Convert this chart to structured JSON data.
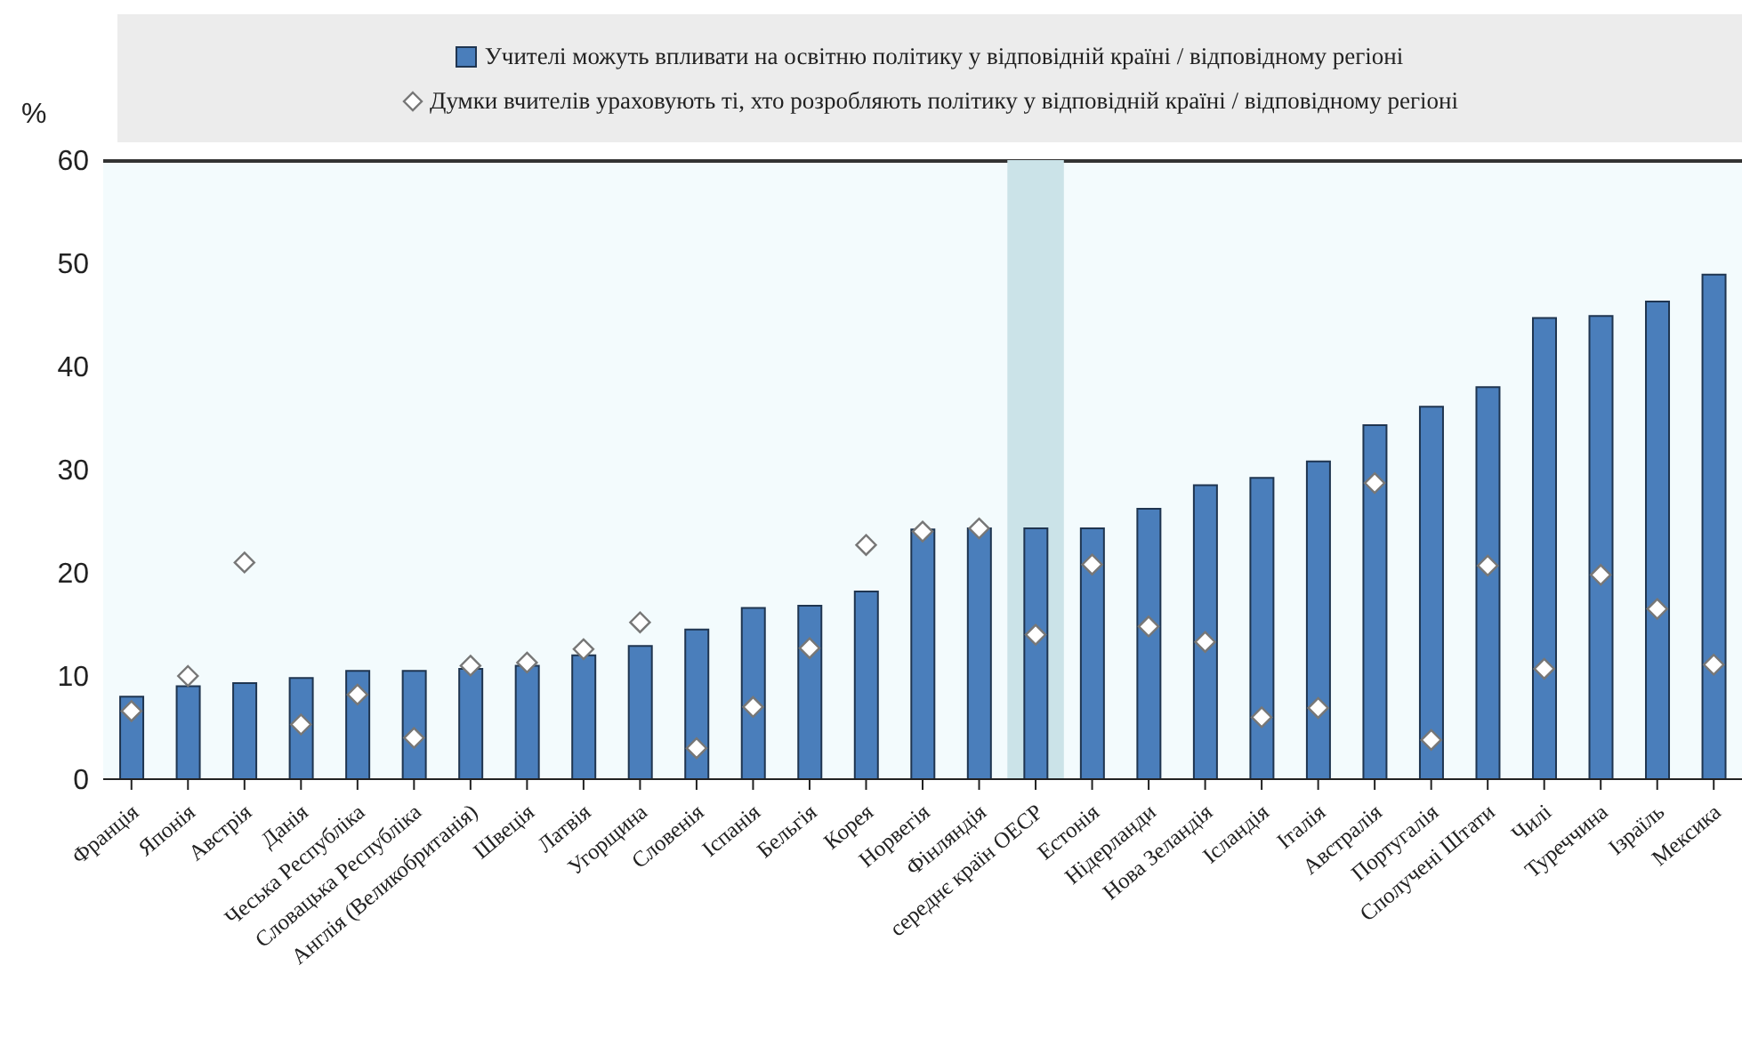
{
  "chart_data": {
    "type": "bar",
    "ylabel": "%",
    "categories": [
      "Франція",
      "Японія",
      "Австрія",
      "Данія",
      "Чеська Республіка",
      "Словацька Республіка",
      "Англія (Великобританія)",
      "Швеція",
      "Латвія",
      "Угорщина",
      "Словенія",
      "Іспанія",
      "Бельгія",
      "Корея",
      "Норвегія",
      "Фінляндія",
      "середнє країн ОЕСР",
      "Естонія",
      "Нідерланди",
      "Нова Зеландія",
      "Ісландія",
      "Італія",
      "Австралія",
      "Португалія",
      "Сполучені Штати",
      "Чилі",
      "Туреччина",
      "Ізраїль",
      "Мексика"
    ],
    "series": [
      {
        "name": "Учителі можуть впливати на освітню політику у відповідній країні / відповідному регіоні",
        "color": "#4a7ebb",
        "values": [
          8.0,
          9.0,
          9.3,
          9.8,
          10.5,
          10.5,
          10.7,
          11.0,
          12.0,
          12.9,
          14.5,
          16.6,
          16.8,
          18.2,
          24.2,
          24.3,
          24.3,
          24.3,
          26.2,
          28.5,
          29.2,
          30.8,
          34.3,
          36.1,
          38.0,
          44.7,
          44.9,
          46.3,
          48.9
        ]
      },
      {
        "type": "scatter",
        "marker": "diamond",
        "name": "Думки вчителів ураховують ті, хто розробляють політику у відповідній країні / відповідному регіоні",
        "color": "#ffffff",
        "values": [
          6.6,
          10.0,
          21.0,
          5.3,
          8.2,
          4.0,
          11.0,
          11.3,
          12.6,
          15.2,
          3.0,
          7.0,
          12.7,
          22.7,
          24.0,
          24.3,
          14.0,
          20.8,
          14.8,
          13.3,
          6.0,
          6.9,
          28.7,
          3.8,
          20.7,
          10.7,
          19.8,
          16.5,
          11.1
        ]
      }
    ],
    "ylim": [
      0,
      60
    ],
    "yticks": [
      0,
      10,
      20,
      30,
      40,
      50,
      60
    ],
    "grid": false,
    "legend": "top",
    "bands": [
      {
        "axis": "x",
        "from": "середнє країн ОЕСР",
        "to": "середнє країн ОЕСР",
        "color": "#cbe3e8"
      }
    ]
  }
}
